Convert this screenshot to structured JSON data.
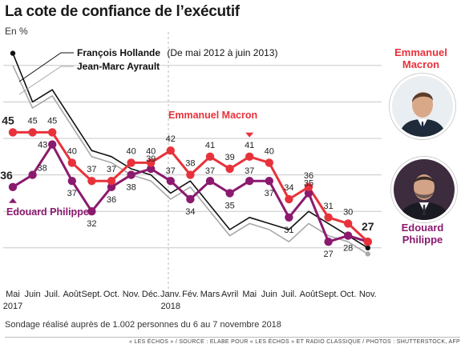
{
  "title": "La cote de confiance de l’exécutif",
  "subtitle": "En %",
  "note": "Sondage réalisé auprès de 1.002 personnes du 6 au 7 novembre 2018",
  "source": "« LES ÉCHOS » / SOURCE : ELABE POUR « LES ÉCHOS » ET RADIO CLASSIQUE / PHOTOS : SHUTTERSTOCK, AFP",
  "portraits": [
    {
      "name": "Emmanuel Macron",
      "lines": [
        "Emmanuel",
        "Macron"
      ],
      "color": "#e8323b"
    },
    {
      "name": "Edouard Philippe",
      "lines": [
        "Edouard",
        "Philippe"
      ],
      "color": "#8b1a6e"
    }
  ],
  "chart_data": {
    "type": "line",
    "x": [
      "Mai",
      "Juin",
      "Juil.",
      "Août",
      "Sept.",
      "Oct.",
      "Nov.",
      "Déc.",
      "Janv.",
      "Fév.",
      "Mars",
      "Avril",
      "Mai",
      "Juin",
      "Juil.",
      "Août",
      "Sept.",
      "Oct.",
      "Nov."
    ],
    "x_years": [
      {
        "index": 0,
        "label": "2017"
      },
      {
        "index": 8,
        "label": "2018"
      }
    ],
    "ylim": [
      24,
      59
    ],
    "grid": "horizontal",
    "series": [
      {
        "name": "Emmanuel Macron",
        "color": "#e8323b",
        "values": [
          45,
          45,
          45,
          40,
          37,
          37,
          40,
          40,
          42,
          38,
          41,
          39,
          41,
          40,
          34,
          36,
          31,
          30,
          27
        ],
        "labels": [
          "45",
          "45",
          "45",
          "40",
          "37",
          "37",
          "40",
          "40",
          "42",
          "38",
          "41",
          "39",
          "41",
          "40",
          "34",
          "36",
          "31",
          "30",
          "27"
        ]
      },
      {
        "name": "Edouard Philippe",
        "color": "#8b1a6e",
        "values": [
          36,
          38,
          43,
          37,
          32,
          36,
          38,
          39,
          37,
          34,
          37,
          35,
          37,
          37,
          31,
          35,
          27,
          28,
          27
        ],
        "labels": [
          "36",
          "38",
          "43",
          "37",
          "32",
          "36",
          "38",
          "39",
          "37",
          "34",
          "37",
          "35",
          "37",
          "37",
          "31",
          "35",
          "27",
          "28",
          ""
        ]
      },
      {
        "name": "François Hollande",
        "annotation": "(De mai 2012 à juin 2013)",
        "color": "#111111",
        "values": [
          58,
          50,
          52,
          47,
          42,
          41,
          39,
          38,
          35,
          37,
          33,
          29,
          31,
          30,
          29,
          32,
          30,
          28,
          26
        ]
      },
      {
        "name": "Jean-Marc Ayrault",
        "color": "#a8a8a8",
        "values": [
          56,
          49,
          51,
          46,
          41,
          40,
          38,
          37,
          34,
          36,
          32,
          28,
          30,
          29,
          27,
          30,
          28,
          27,
          25
        ]
      }
    ],
    "markers": [
      {
        "series": "Emmanuel Macron",
        "index": 12,
        "shape": "triangle-down"
      },
      {
        "series": "Edouard Philippe",
        "index": 0,
        "shape": "triangle-up"
      }
    ]
  }
}
